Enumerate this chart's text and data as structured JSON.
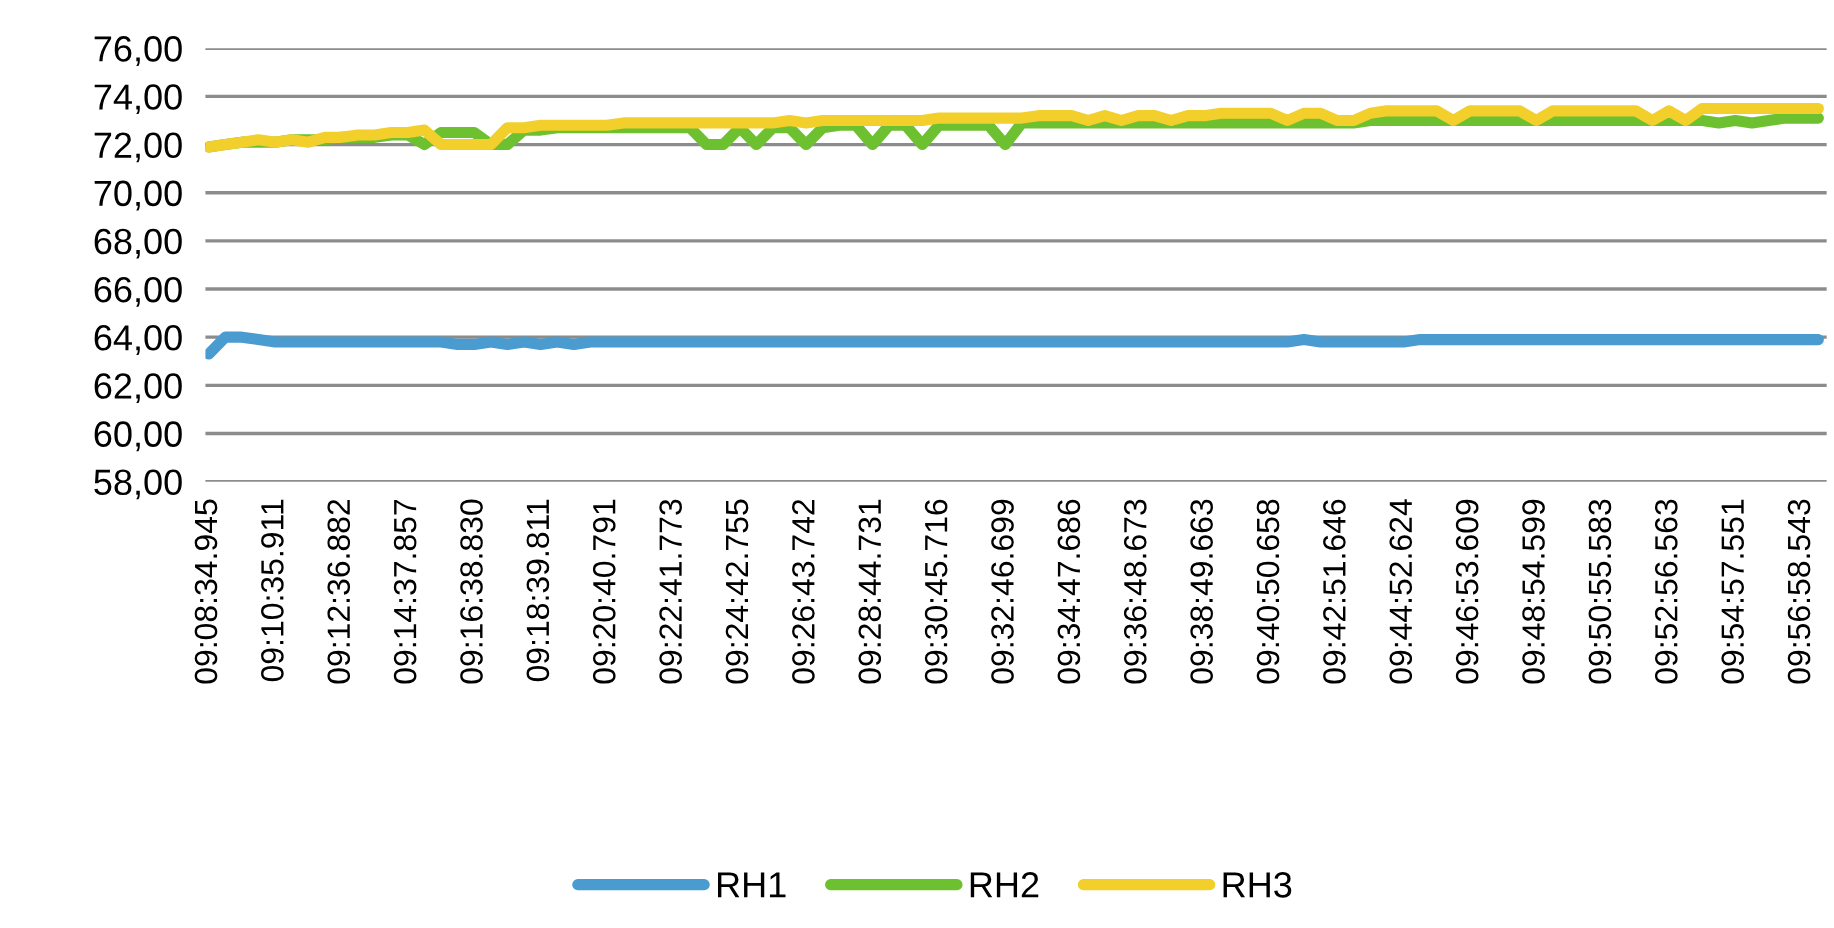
{
  "chart_data": {
    "type": "line",
    "categories": [
      "09:08:34.945",
      null,
      null,
      null,
      "09:10:35.911",
      null,
      null,
      null,
      "09:12:36.882",
      null,
      null,
      null,
      "09:14:37.857",
      null,
      null,
      null,
      "09:16:38.830",
      null,
      null,
      null,
      "09:18:39.811",
      null,
      null,
      null,
      "09:20:40.791",
      null,
      null,
      null,
      "09:22:41.773",
      null,
      null,
      null,
      "09:24:42.755",
      null,
      null,
      null,
      "09:26:43.742",
      null,
      null,
      null,
      "09:28:44.731",
      null,
      null,
      null,
      "09:30:45.716",
      null,
      null,
      null,
      "09:32:46.699",
      null,
      null,
      null,
      "09:34:47.686",
      null,
      null,
      null,
      "09:36:48.673",
      null,
      null,
      null,
      "09:38:49.663",
      null,
      null,
      null,
      "09:40:50.658",
      null,
      null,
      null,
      "09:42:51.646",
      null,
      null,
      null,
      "09:44:52.624",
      null,
      null,
      null,
      "09:46:53.609",
      null,
      null,
      null,
      "09:48:54.599",
      null,
      null,
      null,
      "09:50:55.583",
      null,
      null,
      null,
      "09:52:56.563",
      null,
      null,
      null,
      "09:54:57.551",
      null,
      null,
      null,
      "09:56:58.543",
      null
    ],
    "series": [
      {
        "name": "RH1",
        "color": "#4a9bd0",
        "values": [
          63.3,
          64.0,
          64.0,
          63.9,
          63.8,
          63.8,
          63.8,
          63.8,
          63.8,
          63.8,
          63.8,
          63.8,
          63.8,
          63.8,
          63.8,
          63.7,
          63.7,
          63.8,
          63.7,
          63.8,
          63.7,
          63.8,
          63.7,
          63.8,
          63.8,
          63.8,
          63.8,
          63.8,
          63.8,
          63.8,
          63.8,
          63.8,
          63.8,
          63.8,
          63.8,
          63.8,
          63.8,
          63.8,
          63.8,
          63.8,
          63.8,
          63.8,
          63.8,
          63.8,
          63.8,
          63.8,
          63.8,
          63.8,
          63.8,
          63.8,
          63.8,
          63.8,
          63.8,
          63.8,
          63.8,
          63.8,
          63.8,
          63.8,
          63.8,
          63.8,
          63.8,
          63.8,
          63.8,
          63.8,
          63.8,
          63.8,
          63.9,
          63.8,
          63.8,
          63.8,
          63.8,
          63.8,
          63.8,
          63.9,
          63.9,
          63.9,
          63.9,
          63.9,
          63.9,
          63.9,
          63.9,
          63.9,
          63.9,
          63.9,
          63.9,
          63.9,
          63.9,
          63.9,
          63.9,
          63.9,
          63.9,
          63.9,
          63.9,
          63.9,
          63.9,
          63.9,
          63.9,
          63.9
        ]
      },
      {
        "name": "RH2",
        "color": "#6dc02f",
        "values": [
          71.9,
          72.0,
          72.1,
          72.1,
          72.1,
          72.2,
          72.2,
          72.2,
          72.3,
          72.3,
          72.3,
          72.4,
          72.4,
          72.0,
          72.5,
          72.5,
          72.5,
          72.0,
          72.0,
          72.6,
          72.6,
          72.7,
          72.7,
          72.7,
          72.7,
          72.7,
          72.7,
          72.7,
          72.7,
          72.7,
          72.0,
          72.0,
          72.7,
          72.0,
          72.7,
          72.7,
          72.0,
          72.7,
          72.8,
          72.8,
          72.0,
          72.8,
          72.8,
          72.0,
          72.8,
          72.8,
          72.8,
          72.8,
          72.0,
          72.9,
          72.9,
          72.9,
          72.9,
          72.9,
          72.9,
          72.9,
          72.9,
          72.9,
          72.9,
          72.9,
          72.9,
          72.9,
          72.9,
          72.9,
          72.9,
          72.9,
          72.9,
          72.9,
          72.9,
          72.9,
          73.0,
          73.0,
          73.0,
          73.0,
          73.0,
          73.0,
          73.0,
          73.0,
          73.0,
          73.0,
          73.0,
          73.0,
          73.0,
          73.0,
          73.0,
          73.0,
          73.0,
          73.0,
          73.0,
          73.0,
          73.0,
          72.9,
          73.0,
          72.9,
          73.0,
          73.1,
          73.1,
          73.1
        ]
      },
      {
        "name": "RH3",
        "color": "#f2cf2a",
        "values": [
          71.9,
          72.0,
          72.1,
          72.2,
          72.1,
          72.2,
          72.1,
          72.3,
          72.3,
          72.4,
          72.4,
          72.5,
          72.5,
          72.6,
          72.0,
          72.0,
          72.0,
          72.0,
          72.7,
          72.7,
          72.8,
          72.8,
          72.8,
          72.8,
          72.8,
          72.9,
          72.9,
          72.9,
          72.9,
          72.9,
          72.9,
          72.9,
          72.9,
          72.9,
          72.9,
          73.0,
          72.9,
          73.0,
          73.0,
          73.0,
          73.0,
          73.0,
          73.0,
          73.0,
          73.1,
          73.1,
          73.1,
          73.1,
          73.1,
          73.1,
          73.2,
          73.2,
          73.2,
          73.0,
          73.2,
          73.0,
          73.2,
          73.2,
          73.0,
          73.2,
          73.2,
          73.3,
          73.3,
          73.3,
          73.3,
          73.0,
          73.3,
          73.3,
          73.0,
          73.0,
          73.3,
          73.4,
          73.4,
          73.4,
          73.4,
          73.0,
          73.4,
          73.4,
          73.4,
          73.4,
          73.0,
          73.4,
          73.4,
          73.4,
          73.4,
          73.4,
          73.4,
          73.0,
          73.4,
          73.0,
          73.5,
          73.5,
          73.5,
          73.5,
          73.5,
          73.5,
          73.5,
          73.5
        ]
      }
    ],
    "ylim": [
      58,
      76
    ],
    "yticks": [
      {
        "value": 58,
        "label": "58,00"
      },
      {
        "value": 60,
        "label": "60,00"
      },
      {
        "value": 62,
        "label": "62,00"
      },
      {
        "value": 64,
        "label": "64,00"
      },
      {
        "value": 66,
        "label": "66,00"
      },
      {
        "value": 68,
        "label": "68,00"
      },
      {
        "value": 70,
        "label": "70,00"
      },
      {
        "value": 72,
        "label": "72,00"
      },
      {
        "value": 74,
        "label": "74,00"
      },
      {
        "value": 76,
        "label": "76,00"
      }
    ],
    "grid": "y",
    "legend": "bottom",
    "marker": "none",
    "line_style": "solid"
  }
}
